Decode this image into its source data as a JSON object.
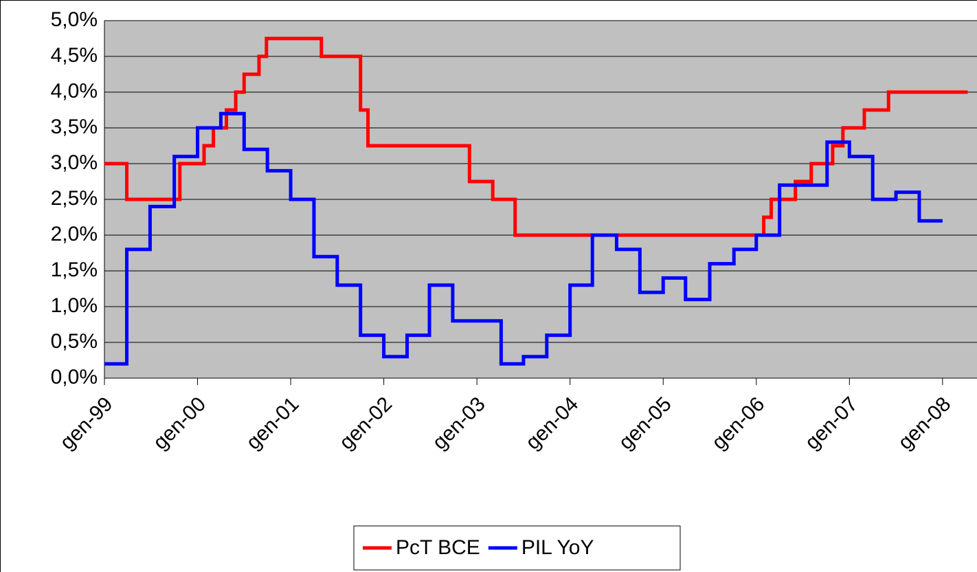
{
  "chart_data": {
    "type": "line",
    "step": "post",
    "xlim": [
      1999,
      2008.37
    ],
    "xticks": [
      {
        "value": 1999,
        "label": "gen-99"
      },
      {
        "value": 2000,
        "label": "gen-00"
      },
      {
        "value": 2001,
        "label": "gen-01"
      },
      {
        "value": 2002,
        "label": "gen-02"
      },
      {
        "value": 2003,
        "label": "gen-03"
      },
      {
        "value": 2004,
        "label": "gen-04"
      },
      {
        "value": 2005,
        "label": "gen-05"
      },
      {
        "value": 2006,
        "label": "gen-06"
      },
      {
        "value": 2007,
        "label": "gen-07"
      },
      {
        "value": 2008,
        "label": "gen-08"
      }
    ],
    "ylim": [
      0,
      5
    ],
    "yticks": [
      {
        "value": 0,
        "label": "0,0%"
      },
      {
        "value": 0.5,
        "label": "0,5%"
      },
      {
        "value": 1,
        "label": "1,0%"
      },
      {
        "value": 1.5,
        "label": "1,5%"
      },
      {
        "value": 2,
        "label": "2,0%"
      },
      {
        "value": 2.5,
        "label": "2,5%"
      },
      {
        "value": 3,
        "label": "3,0%"
      },
      {
        "value": 3.5,
        "label": "3,5%"
      },
      {
        "value": 4,
        "label": "4,0%"
      },
      {
        "value": 4.5,
        "label": "4,5%"
      },
      {
        "value": 5,
        "label": "5,0%"
      }
    ],
    "grid": true,
    "legend": "bottom",
    "series": [
      {
        "name": "PcT BCE",
        "color": "#ff0000",
        "x": [
          1999.0,
          1999.24,
          1999.81,
          2000.07,
          2000.17,
          2000.31,
          2000.41,
          2000.5,
          2000.66,
          2000.74,
          2001.33,
          2001.75,
          2001.83,
          2002.92,
          2003.17,
          2003.41,
          2006.08,
          2006.16,
          2006.42,
          2006.59,
          2006.82,
          2006.93,
          2007.16,
          2007.42,
          2008.27
        ],
        "values": [
          3.0,
          2.5,
          3.0,
          3.25,
          3.5,
          3.75,
          4.0,
          4.25,
          4.5,
          4.75,
          4.5,
          3.75,
          3.25,
          2.75,
          2.5,
          2.0,
          2.25,
          2.5,
          2.75,
          3.0,
          3.25,
          3.5,
          3.75,
          4.0,
          4.0
        ]
      },
      {
        "name": "PIL YoY",
        "color": "#0000ff",
        "x": [
          1999.0,
          1999.24,
          1999.49,
          1999.75,
          2000.0,
          2000.25,
          2000.5,
          2000.75,
          2001.0,
          2001.25,
          2001.5,
          2001.75,
          2002.0,
          2002.25,
          2002.49,
          2002.74,
          2003.26,
          2003.5,
          2003.75,
          2004.0,
          2004.24,
          2004.5,
          2004.75,
          2005.0,
          2005.24,
          2005.5,
          2005.76,
          2006.0,
          2006.25,
          2006.76,
          2007.0,
          2007.25,
          2007.5,
          2007.75,
          2008.0
        ],
        "values": [
          0.2,
          1.8,
          2.4,
          3.1,
          3.5,
          3.7,
          3.2,
          2.9,
          2.5,
          1.7,
          1.3,
          0.6,
          0.3,
          0.6,
          1.3,
          0.8,
          0.2,
          0.3,
          0.6,
          1.3,
          2.0,
          1.8,
          1.2,
          1.4,
          1.1,
          1.6,
          1.8,
          2.0,
          2.7,
          3.3,
          3.1,
          2.5,
          2.6,
          2.2,
          2.2
        ]
      }
    ]
  }
}
